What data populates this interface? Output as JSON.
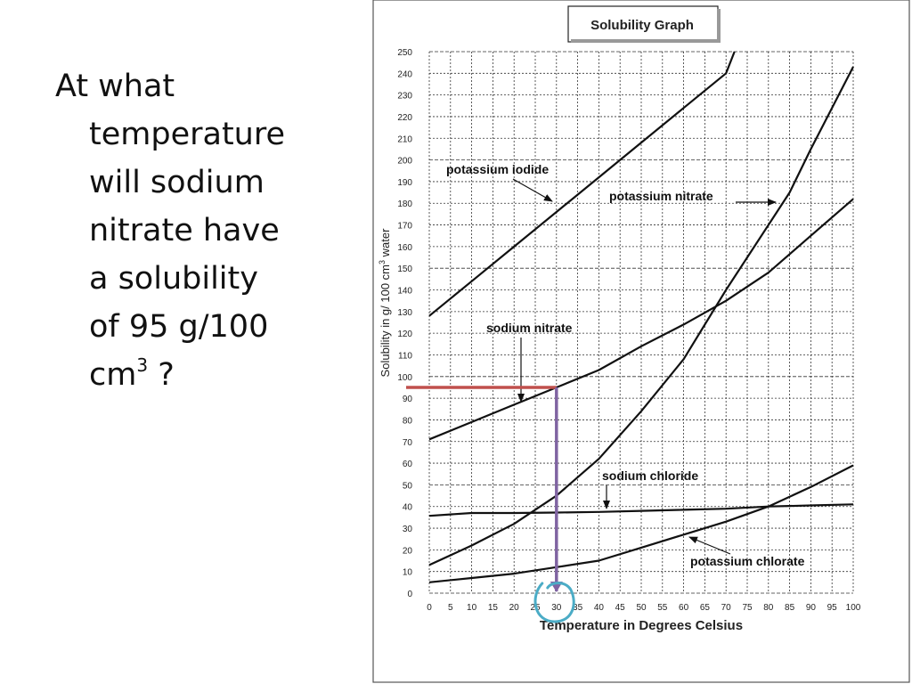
{
  "question": {
    "line1": "At what",
    "line2": "temperature",
    "line3": "will sodium",
    "line4": "nitrate have",
    "line5": "a solubility",
    "line6": "of 95 g/100",
    "line7_prefix": "cm",
    "line7_sup": "3",
    "line7_suffix": " ?"
  },
  "chart_data": {
    "type": "line",
    "title": "Solubility Graph",
    "xlabel": "Temperature in Degrees Celsius",
    "ylabel_prefix": "Solubility in g/ 100 cm",
    "ylabel_sup": "3",
    "ylabel_suffix": " water",
    "xlim": [
      0,
      100
    ],
    "ylim": [
      0,
      250
    ],
    "x_ticks": [
      0,
      5,
      10,
      15,
      20,
      25,
      30,
      35,
      40,
      45,
      50,
      55,
      60,
      65,
      70,
      75,
      80,
      85,
      90,
      95,
      100
    ],
    "y_ticks": [
      0,
      10,
      20,
      30,
      40,
      50,
      60,
      70,
      80,
      90,
      100,
      110,
      120,
      130,
      140,
      150,
      160,
      170,
      180,
      190,
      200,
      210,
      220,
      230,
      240,
      250
    ],
    "grid": true,
    "series": [
      {
        "name": "potassium iodide",
        "x": [
          0,
          10,
          20,
          30,
          40,
          50,
          60,
          70,
          72
        ],
        "y": [
          128,
          144,
          160,
          176,
          192,
          208,
          224,
          240,
          250
        ]
      },
      {
        "name": "potassium nitrate",
        "x": [
          0,
          10,
          20,
          30,
          40,
          50,
          60,
          70,
          80,
          85,
          90,
          100
        ],
        "y": [
          13,
          22,
          32,
          45,
          62,
          84,
          108,
          140,
          170,
          185,
          205,
          243
        ]
      },
      {
        "name": "sodium nitrate",
        "x": [
          0,
          10,
          20,
          30,
          40,
          50,
          60,
          70,
          80,
          90,
          100
        ],
        "y": [
          71,
          79,
          87,
          95,
          103,
          114,
          124,
          135,
          148,
          165,
          182
        ]
      },
      {
        "name": "sodium chloride",
        "x": [
          0,
          10,
          20,
          30,
          40,
          50,
          60,
          70,
          80,
          90,
          100
        ],
        "y": [
          35.7,
          37,
          37,
          37.2,
          37.5,
          38,
          38.5,
          39,
          40,
          40.5,
          41
        ]
      },
      {
        "name": "potassium chlorate",
        "x": [
          0,
          10,
          20,
          30,
          40,
          50,
          60,
          70,
          80,
          90,
          100
        ],
        "y": [
          5,
          7,
          9,
          12,
          15,
          21,
          27,
          33,
          40,
          49,
          59
        ]
      }
    ],
    "annotations": [
      {
        "text": "potassium iodide"
      },
      {
        "text": "potassium nitrate"
      },
      {
        "text": "sodium nitrate"
      },
      {
        "text": "sodium chloride"
      },
      {
        "text": "potassium chlorate"
      }
    ],
    "markup": {
      "horizontal_guide": {
        "y": 95,
        "x": [
          0,
          30
        ],
        "color": "#c0504d"
      },
      "vertical_guide": {
        "x": 30,
        "y": [
          95,
          0
        ],
        "color": "#8064a2"
      },
      "answer_circle": {
        "x": 30,
        "color": "#4bacc6"
      }
    }
  }
}
